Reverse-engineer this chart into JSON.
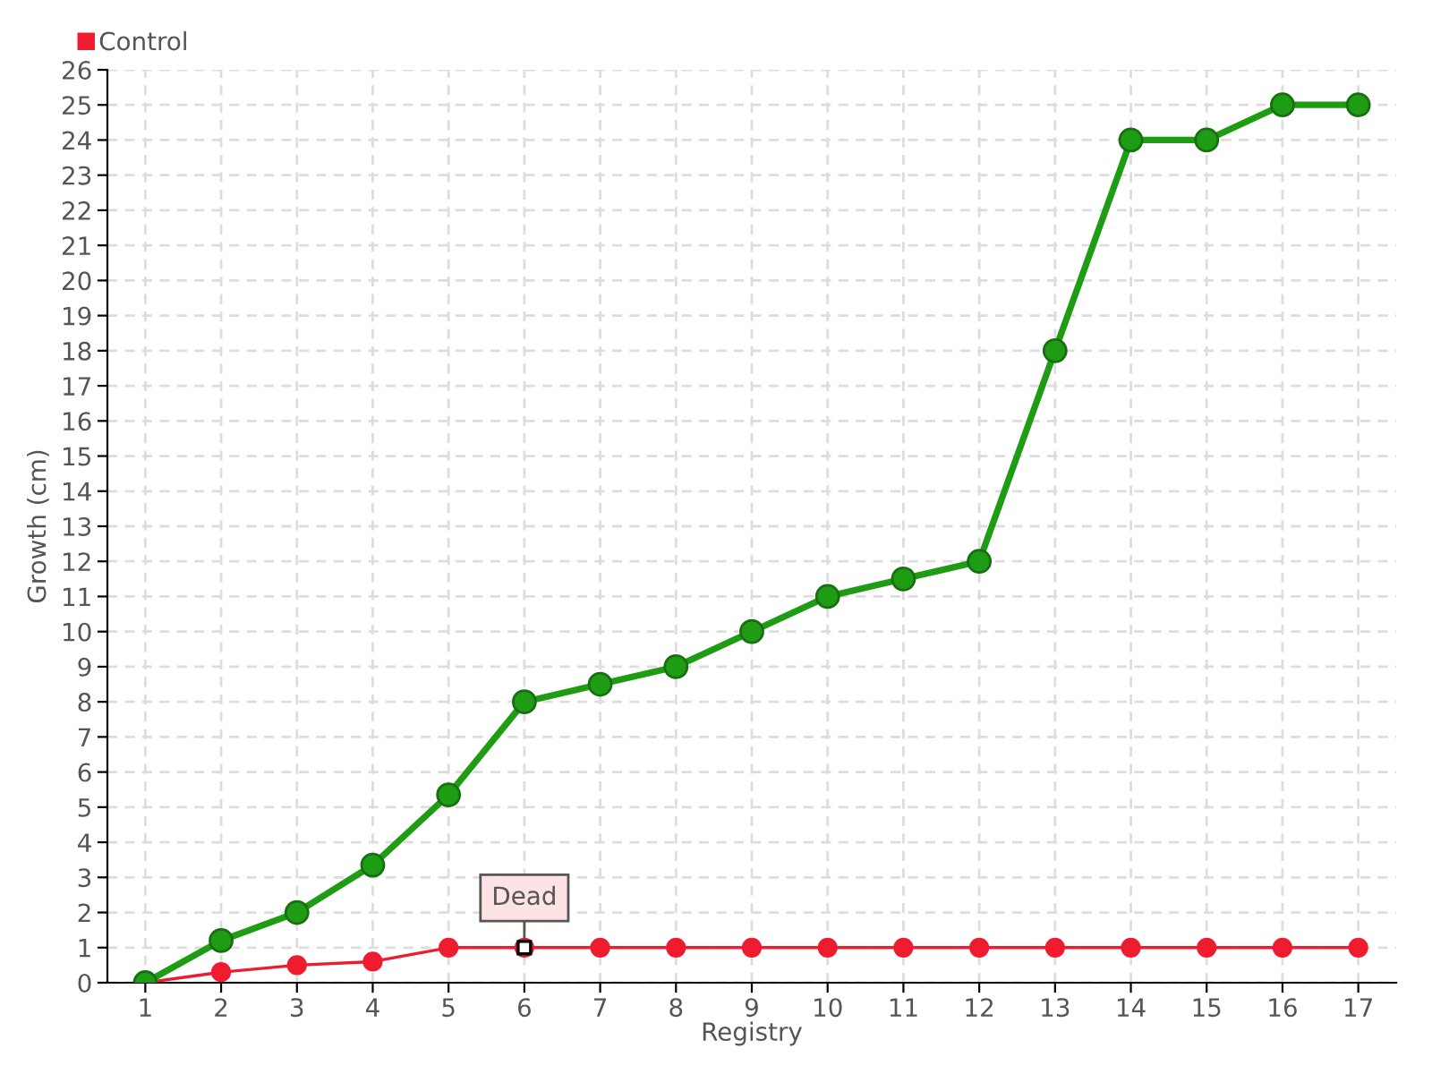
{
  "chart_data": {
    "type": "line",
    "xlabel": "Registry",
    "ylabel": "Growth (cm)",
    "categories": [
      "1",
      "2",
      "3",
      "4",
      "5",
      "6",
      "7",
      "8",
      "9",
      "10",
      "11",
      "12",
      "13",
      "14",
      "15",
      "16",
      "17"
    ],
    "series": [
      {
        "color": "#1e9c14",
        "values": [
          0,
          1.2,
          2,
          3.35,
          5.35,
          8,
          8.5,
          9,
          10,
          11,
          11.5,
          12,
          18,
          24,
          24,
          25,
          25
        ]
      },
      {
        "name": "Control",
        "color": "#ee1c2e",
        "values": [
          0,
          0.3,
          0.5,
          0.6,
          1,
          1,
          1,
          1,
          1,
          1,
          1,
          1,
          1,
          1,
          1,
          1,
          1
        ]
      }
    ],
    "ylim": [
      0,
      26
    ],
    "yticks": [
      0,
      1,
      2,
      3,
      4,
      5,
      6,
      7,
      8,
      9,
      10,
      11,
      12,
      13,
      14,
      15,
      16,
      17,
      18,
      19,
      20,
      21,
      22,
      23,
      24,
      25,
      26
    ],
    "annotations": [
      {
        "text": "Dead",
        "x": "6",
        "y": 1
      }
    ],
    "grid": true,
    "legend": "top left",
    "marker": "circle",
    "line_style": "solid"
  }
}
